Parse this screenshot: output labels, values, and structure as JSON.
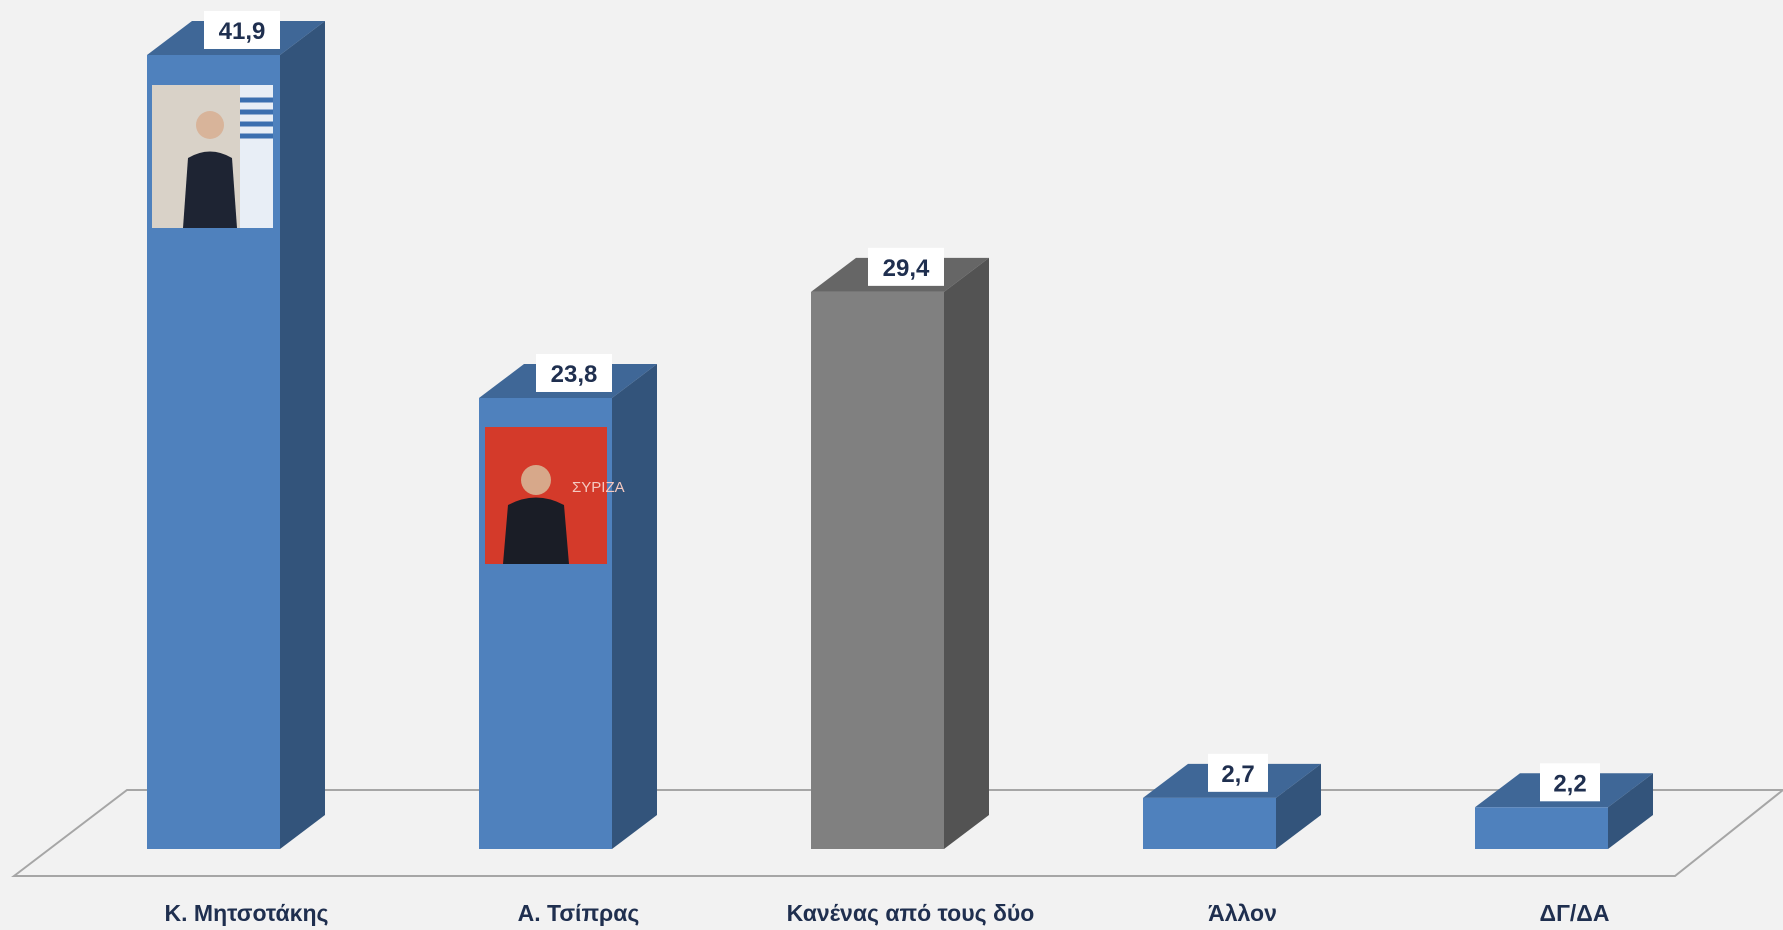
{
  "chart_data": {
    "type": "bar3d",
    "categories": [
      "Κ. Μητσοτάκης",
      "Α. Τσίπρας",
      "Κανένας από τους δύο",
      "Άλλον",
      "ΔΓ/ΔΑ"
    ],
    "values": [
      41.9,
      23.8,
      29.4,
      2.7,
      2.2
    ],
    "value_labels": [
      "41,9",
      "23,8",
      "29,4",
      "2,7",
      "2,2"
    ],
    "colors": [
      "#4f81bd",
      "#4f81bd",
      "#808080",
      "#4f81bd",
      "#4f81bd"
    ]
  }
}
